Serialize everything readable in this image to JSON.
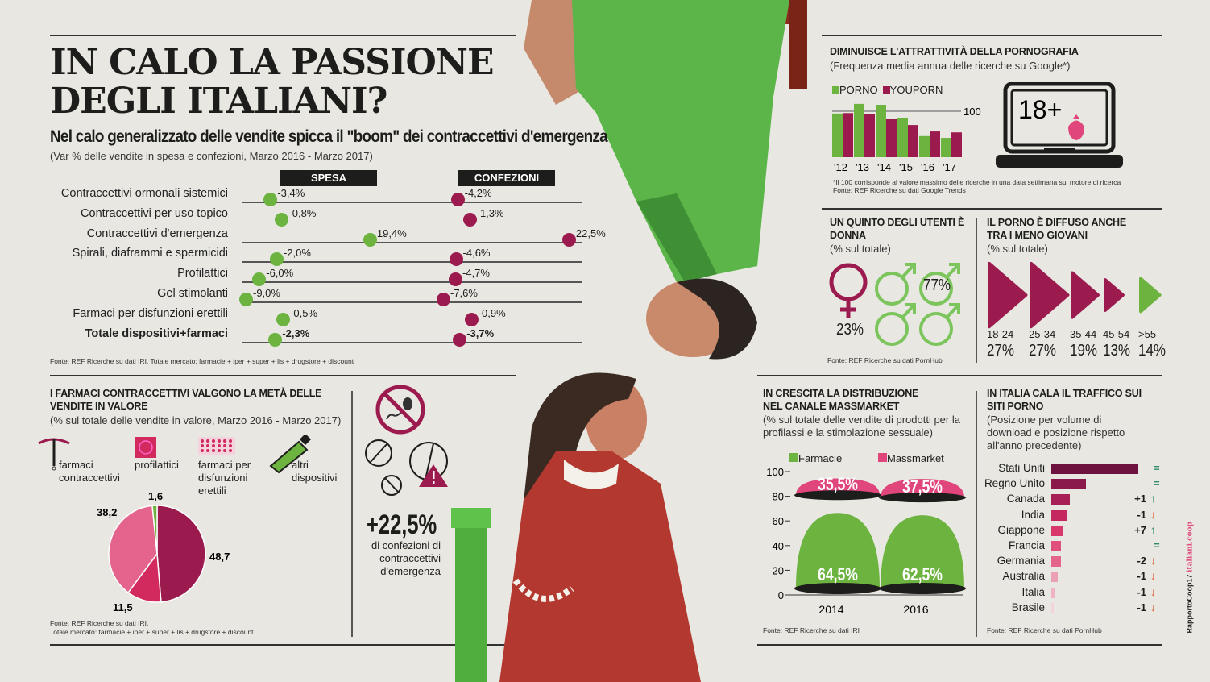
{
  "header": {
    "title_line1": "IN CALO LA PASSIONE",
    "title_line2": "DEGLI ITALIANI?",
    "subtitle": "Nel calo generalizzato delle vendite spicca il \"boom\" dei contraccettivi d'emergenza",
    "note": "(Var % delle vendite in spesa e confezioni, Marzo 2016 - Marzo 2017)"
  },
  "colors": {
    "green": "#6cb33f",
    "magenta": "#9c1b4f",
    "pink": "#e0457b",
    "dark": "#1d1d1b",
    "up": "#2e8b6a",
    "down": "#e2582a"
  },
  "chart_data": [
    {
      "type": "scatter",
      "id": "var-vendite",
      "columns": [
        "SPESA",
        "CONFEZIONI"
      ],
      "rows": [
        {
          "label": "Contraccettivi ormonali sistemici",
          "spesa": -3.4,
          "spesa_text": "-3,4%",
          "conf": -4.2,
          "conf_text": "-4,2%"
        },
        {
          "label": "Contraccettivi per uso topico",
          "spesa": -0.8,
          "spesa_text": "-0,8%",
          "conf": -1.3,
          "conf_text": "-1,3%"
        },
        {
          "label": "Contraccettivi d'emergenza",
          "spesa": 19.4,
          "spesa_text": "19,4%",
          "conf": 22.5,
          "conf_text": "22,5%"
        },
        {
          "label": "Spirali, diaframmi e spermicidi",
          "spesa": -2.0,
          "spesa_text": "-2,0%",
          "conf": -4.6,
          "conf_text": "-4,6%"
        },
        {
          "label": "Profilattici",
          "spesa": -6.0,
          "spesa_text": "-6,0%",
          "conf": -4.7,
          "conf_text": "-4,7%"
        },
        {
          "label": "Gel stimolanti",
          "spesa": -9.0,
          "spesa_text": "-9,0%",
          "conf": -7.6,
          "conf_text": "-7,6%"
        },
        {
          "label": "Farmaci per disfunzioni erettili",
          "spesa": -0.5,
          "spesa_text": "-0,5%",
          "conf": -0.9,
          "conf_text": "-0,9%"
        },
        {
          "label": "Totale dispositivi+farmaci",
          "spesa": -2.3,
          "spesa_text": "-2,3%",
          "conf": -3.7,
          "conf_text": "-3,7%",
          "bold": true
        }
      ],
      "source": "Fonte: REF Ricerche su dati IRI. Totale mercato: farmacie + iper + super + lis + drugstore + discount"
    },
    {
      "type": "pie",
      "id": "quota-valore",
      "title": "I FARMACI CONTRACCETTIVI VALGONO LA METÀ DELLE VENDITE IN VALORE",
      "subtitle": "(% sul totale delle vendite in valore, Marzo 2016 - Marzo 2017)",
      "slices": [
        {
          "name": "farmaci contraccettivi",
          "value": 48.7,
          "label": "48,7",
          "color": "#9c1b4f"
        },
        {
          "name": "profilattici",
          "value": 11.5,
          "label": "11,5",
          "color": "#d22a5e"
        },
        {
          "name": "farmaci per disfunzioni erettili",
          "value": 38.2,
          "label": "38,2",
          "color": "#e4648e"
        },
        {
          "name": "altri dispositivi",
          "value": 1.6,
          "label": "1,6",
          "color": "#6cb33f"
        }
      ],
      "legend": [
        "farmaci contraccettivi",
        "profilattici",
        "farmaci per disfunzioni erettili",
        "altri dispositivi"
      ],
      "source1": "Fonte: REF Ricerche su dati IRI.",
      "source2": "Totale mercato: farmacie + iper + super + lis + drugstore + discount"
    },
    {
      "type": "bar",
      "id": "google-trends",
      "title": "DIMINUISCE L'ATTRATTIVITÀ DELLA PORNOGRAFIA",
      "subtitle": "(Frequenza media annua delle ricerche su Google*)",
      "categories": [
        "'12",
        "'13",
        "'14",
        "'15",
        "'16",
        "'17"
      ],
      "series": [
        {
          "name": "PORNO",
          "color": "#6cb33f",
          "values": [
            95,
            116,
            114,
            86,
            46,
            42
          ]
        },
        {
          "name": "YOUPORN",
          "color": "#9c1b4f",
          "values": [
            96,
            93,
            84,
            70,
            56,
            54
          ]
        }
      ],
      "reference_line": 100,
      "reference_label": "100",
      "ylim": [
        0,
        120
      ],
      "footnote": "*Il 100 corrisponde al valore massimo delle ricerche in una data settimana sul motore di ricerca",
      "source": "Fonte: REF Ricerche su dati Google Trends"
    },
    {
      "type": "bar",
      "id": "eta",
      "title": "IL PORNO È DIFFUSO ANCHE TRA I MENO GIOVANI",
      "subtitle": "(% sul totale)",
      "categories": [
        "18-24",
        "25-34",
        "35-44",
        "45-54",
        ">55"
      ],
      "values": [
        27,
        27,
        19,
        13,
        14
      ],
      "labels": [
        "27%",
        "27%",
        "19%",
        "13%",
        "14%"
      ]
    },
    {
      "type": "bar",
      "id": "massmarket",
      "title": "IN CRESCITA LA DISTRIBUZIONE NEL CANALE MASSMARKET",
      "subtitle": "(% sul totale delle vendite di prodotti per la profilassi e la stimolazione sessuale)",
      "categories": [
        "2014",
        "2016"
      ],
      "series": [
        {
          "name": "Farmacie",
          "color": "#6cb33f",
          "values": [
            64.5,
            62.5
          ],
          "labels": [
            "64,5%",
            "62,5%"
          ]
        },
        {
          "name": "Massmarket",
          "color": "#e0457b",
          "values": [
            35.5,
            37.5
          ],
          "labels": [
            "35,5%",
            "37,5%"
          ]
        }
      ],
      "yticks": [
        "100",
        "80",
        "60",
        "40",
        "20",
        "0"
      ],
      "ylim": [
        0,
        100
      ],
      "source": "Fonte: REF Ricerche su dati IRI"
    },
    {
      "type": "bar",
      "id": "traffico",
      "title": "IN ITALIA CALA IL TRAFFICO SUI SITI PORNO",
      "subtitle": "(Posizione per volume di download e posizione rispetto all'anno precedente)",
      "categories": [
        "Stati Uniti",
        "Regno Unito",
        "Canada",
        "India",
        "Giappone",
        "Francia",
        "Germania",
        "Australia",
        "Italia",
        "Brasile"
      ],
      "values": [
        100,
        40,
        21,
        18,
        14,
        11,
        11,
        7,
        5,
        3
      ],
      "changes": [
        "=",
        "=",
        "+1",
        "-1",
        "+7",
        "=",
        "-2",
        "-1",
        "-1",
        "-1"
      ],
      "source": "Fonte: REF Ricerche su dati PornHub"
    }
  ],
  "gender": {
    "title": "UN QUINTO DEGLI UTENTI È DONNA",
    "subtitle": "(% sul totale)",
    "female": "23%",
    "male": "77%",
    "female_value": 23,
    "male_value": 77,
    "source": "Fonte: REF Ricerche su dati PornHub"
  },
  "emergency": {
    "value": "+22,5%",
    "text": "di confezioni di contraccettivi d'emergenza"
  },
  "laptop": {
    "label": "18+"
  },
  "credit": {
    "part1": "RapportoCoop17",
    "part2": "italiani.coop"
  }
}
